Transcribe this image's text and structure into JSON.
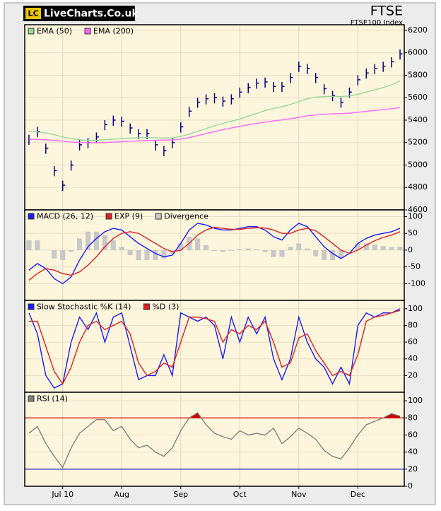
{
  "header": {
    "logo_mark": "LC",
    "logo_text": "LiveCharts.Co.uk"
  },
  "chart_data": [
    {
      "type": "ohlc",
      "title": "FTSE",
      "subtitle": "FTSE100 Index",
      "ohlc": {
        "color": "#000080",
        "high": [
          5270,
          5340,
          5190,
          4990,
          4860,
          5040,
          5220,
          5240,
          5290,
          5400,
          5440,
          5430,
          5370,
          5320,
          5320,
          5220,
          5170,
          5240,
          5380,
          5520,
          5600,
          5630,
          5640,
          5610,
          5630,
          5690,
          5730,
          5770,
          5780,
          5740,
          5740,
          5820,
          5920,
          5900,
          5820,
          5720,
          5660,
          5600,
          5690,
          5800,
          5860,
          5900,
          5920,
          5960,
          6030
        ],
        "low": [
          5180,
          5250,
          5100,
          4900,
          4770,
          4950,
          5130,
          5150,
          5200,
          5310,
          5350,
          5340,
          5280,
          5230,
          5230,
          5130,
          5080,
          5150,
          5290,
          5430,
          5510,
          5540,
          5550,
          5520,
          5540,
          5600,
          5640,
          5680,
          5690,
          5650,
          5650,
          5730,
          5830,
          5810,
          5730,
          5630,
          5570,
          5510,
          5600,
          5710,
          5770,
          5810,
          5830,
          5870,
          5940
        ],
        "close": [
          5230,
          5300,
          5150,
          4950,
          4820,
          5000,
          5180,
          5200,
          5250,
          5360,
          5400,
          5390,
          5330,
          5280,
          5280,
          5180,
          5130,
          5200,
          5340,
          5480,
          5560,
          5590,
          5600,
          5570,
          5590,
          5650,
          5690,
          5730,
          5740,
          5700,
          5700,
          5780,
          5880,
          5860,
          5780,
          5680,
          5620,
          5560,
          5650,
          5760,
          5820,
          5860,
          5880,
          5920,
          5990
        ]
      },
      "series": [
        {
          "name": "EMA (50)",
          "color": "#99d699",
          "values": [
            5300,
            5295,
            5285,
            5270,
            5250,
            5235,
            5225,
            5220,
            5220,
            5225,
            5230,
            5235,
            5240,
            5242,
            5245,
            5243,
            5240,
            5242,
            5255,
            5275,
            5300,
            5325,
            5350,
            5370,
            5390,
            5410,
            5435,
            5460,
            5485,
            5505,
            5520,
            5540,
            5565,
            5590,
            5605,
            5610,
            5612,
            5610,
            5615,
            5630,
            5650,
            5670,
            5690,
            5715,
            5750
          ]
        },
        {
          "name": "EMA (200)",
          "color": "#ff66ff",
          "values": [
            5230,
            5228,
            5225,
            5220,
            5212,
            5205,
            5200,
            5198,
            5198,
            5200,
            5204,
            5208,
            5212,
            5215,
            5218,
            5220,
            5222,
            5224,
            5230,
            5245,
            5262,
            5280,
            5298,
            5315,
            5330,
            5345,
            5358,
            5370,
            5382,
            5393,
            5402,
            5412,
            5425,
            5438,
            5446,
            5452,
            5456,
            5458,
            5462,
            5470,
            5478,
            5486,
            5494,
            5502,
            5512
          ]
        }
      ],
      "ylim": [
        4600,
        6250
      ],
      "yticks": [
        4600,
        4800,
        5000,
        5200,
        5400,
        5600,
        5800,
        6000,
        6200
      ],
      "grid": true
    },
    {
      "type": "line",
      "series": [
        {
          "name": "MACD (26, 12)",
          "color": "#1a1aff",
          "values": [
            -60,
            -40,
            -55,
            -85,
            -100,
            -80,
            -30,
            10,
            35,
            55,
            65,
            60,
            40,
            20,
            5,
            -10,
            -20,
            -15,
            20,
            60,
            80,
            75,
            65,
            60,
            60,
            65,
            70,
            70,
            60,
            40,
            30,
            60,
            80,
            70,
            40,
            10,
            -10,
            -25,
            -10,
            20,
            35,
            45,
            50,
            55,
            65
          ]
        },
        {
          "name": "EXP (9)",
          "color": "#e02020",
          "values": [
            -90,
            -70,
            -55,
            -60,
            -70,
            -75,
            -65,
            -45,
            -20,
            10,
            35,
            50,
            55,
            50,
            35,
            20,
            5,
            -5,
            0,
            20,
            45,
            60,
            68,
            65,
            62,
            62,
            65,
            67,
            66,
            60,
            50,
            50,
            60,
            65,
            58,
            40,
            20,
            0,
            -10,
            0,
            15,
            28,
            38,
            45,
            55
          ]
        },
        {
          "name": "Divergence",
          "color": "#c8c8c8",
          "kind": "bar",
          "values": [
            30,
            30,
            0,
            -25,
            -30,
            -5,
            35,
            55,
            55,
            45,
            30,
            10,
            -15,
            -30,
            -30,
            -30,
            -25,
            -10,
            20,
            40,
            35,
            15,
            -3,
            -5,
            -2,
            3,
            5,
            3,
            -6,
            -20,
            -20,
            10,
            20,
            5,
            -18,
            -30,
            -30,
            -25,
            0,
            20,
            20,
            17,
            12,
            10,
            10
          ]
        }
      ],
      "ylim": [
        -150,
        120
      ],
      "yticks": [
        -100,
        -50,
        0,
        50,
        100
      ],
      "grid": true
    },
    {
      "type": "line",
      "series": [
        {
          "name": "Slow Stochastic %K (14)",
          "color": "#1a1aff",
          "values": [
            95,
            70,
            20,
            5,
            10,
            60,
            90,
            75,
            95,
            60,
            90,
            95,
            55,
            15,
            20,
            20,
            45,
            20,
            95,
            90,
            85,
            90,
            80,
            40,
            90,
            60,
            90,
            70,
            90,
            40,
            15,
            40,
            90,
            60,
            40,
            30,
            10,
            30,
            10,
            80,
            95,
            90,
            95,
            95,
            100
          ]
        },
        {
          "name": "%D (3)",
          "color": "#e02020",
          "values": [
            85,
            85,
            55,
            25,
            10,
            30,
            60,
            80,
            85,
            75,
            80,
            85,
            70,
            35,
            20,
            25,
            35,
            30,
            60,
            90,
            90,
            88,
            85,
            60,
            75,
            70,
            80,
            75,
            85,
            60,
            30,
            35,
            65,
            70,
            50,
            35,
            20,
            25,
            20,
            45,
            85,
            90,
            92,
            95,
            98
          ]
        }
      ],
      "ylim": [
        0,
        110
      ],
      "yticks": [
        20,
        40,
        60,
        80,
        100
      ],
      "grid": true
    },
    {
      "type": "line",
      "categories": [
        null,
        null,
        null,
        null,
        "Jul 10",
        null,
        null,
        null,
        null,
        null,
        null,
        "Aug",
        null,
        null,
        null,
        null,
        null,
        null,
        "Sep",
        null,
        null,
        null,
        null,
        null,
        null,
        "Oct",
        null,
        null,
        null,
        null,
        null,
        null,
        "Nov",
        null,
        null,
        null,
        null,
        null,
        null,
        "Dec",
        null,
        null,
        null,
        null,
        null
      ],
      "series": [
        {
          "name": "RSI (14)",
          "color": "#808080",
          "values": [
            62,
            70,
            50,
            35,
            22,
            45,
            62,
            70,
            78,
            78,
            65,
            70,
            55,
            45,
            48,
            40,
            35,
            45,
            65,
            80,
            86,
            72,
            62,
            58,
            55,
            65,
            60,
            62,
            60,
            68,
            50,
            58,
            68,
            62,
            55,
            42,
            35,
            32,
            45,
            60,
            72,
            76,
            80,
            85,
            82
          ]
        }
      ],
      "hlines": [
        {
          "value": 80,
          "color": "#d00000",
          "fill": "#cc0000"
        },
        {
          "value": 20,
          "color": "#0000cc"
        }
      ],
      "ylim": [
        0,
        110
      ],
      "yticks": [
        0,
        20,
        40,
        60,
        80,
        100
      ],
      "grid": true
    }
  ]
}
